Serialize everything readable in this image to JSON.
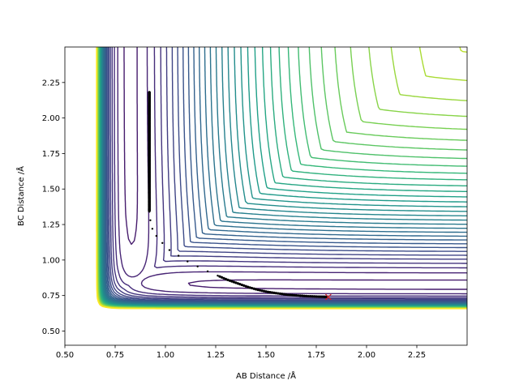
{
  "chart_data": {
    "type": "contour",
    "title": "",
    "xlabel": "AB Distance /Å",
    "ylabel": "BC Distance /Å",
    "xlim": [
      0.5,
      2.5
    ],
    "ylim": [
      0.4,
      2.5
    ],
    "xticks": [
      "0.50",
      "0.75",
      "1.00",
      "1.25",
      "1.50",
      "1.75",
      "2.00",
      "2.25"
    ],
    "yticks": [
      "0.50",
      "0.75",
      "1.00",
      "1.25",
      "1.50",
      "1.75",
      "2.00",
      "2.25"
    ],
    "grid": false,
    "colormap": "viridis",
    "contour_levels": 40,
    "surface": {
      "equilibrium_distance": 0.74,
      "forbidden_core": 0.6
    },
    "trajectory": {
      "color": "#000000",
      "points": [
        [
          0.92,
          2.18
        ],
        [
          0.92,
          2.12
        ],
        [
          0.92,
          2.06
        ],
        [
          0.92,
          2.0
        ],
        [
          0.92,
          1.94
        ],
        [
          0.92,
          1.88
        ],
        [
          0.92,
          1.82
        ],
        [
          0.92,
          1.76
        ],
        [
          0.92,
          1.7
        ],
        [
          0.92,
          1.64
        ],
        [
          0.92,
          1.58
        ],
        [
          0.92,
          1.52
        ],
        [
          0.92,
          1.46
        ],
        [
          0.92,
          1.4
        ],
        [
          0.92,
          1.34
        ],
        [
          0.925,
          1.28
        ],
        [
          0.935,
          1.22
        ],
        [
          0.955,
          1.17
        ],
        [
          0.985,
          1.12
        ],
        [
          1.02,
          1.07
        ],
        [
          1.065,
          1.03
        ],
        [
          1.11,
          0.99
        ],
        [
          1.16,
          0.955
        ],
        [
          1.21,
          0.92
        ],
        [
          1.26,
          0.89
        ],
        [
          1.31,
          0.86
        ],
        [
          1.36,
          0.835
        ],
        [
          1.41,
          0.81
        ],
        [
          1.46,
          0.79
        ],
        [
          1.51,
          0.775
        ],
        [
          1.56,
          0.765
        ],
        [
          1.61,
          0.755
        ],
        [
          1.66,
          0.75
        ],
        [
          1.71,
          0.745
        ],
        [
          1.76,
          0.742
        ],
        [
          1.8,
          0.74
        ]
      ]
    },
    "end_marker": {
      "x": 1.81,
      "y": 0.74,
      "color": "#d62728",
      "shape": "x"
    }
  }
}
